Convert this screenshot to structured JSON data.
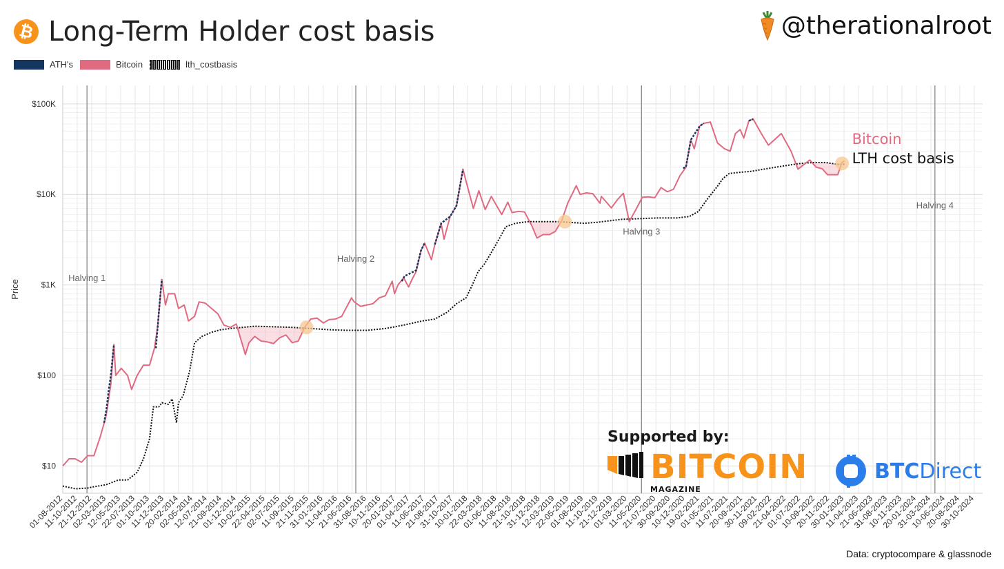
{
  "header": {
    "title": "Long-Term Holder cost basis",
    "logo_symbol": "₿",
    "handle": "@therationalroot",
    "handle_icon": "carrot-icon"
  },
  "legend": [
    {
      "label": "ATH's",
      "color": "#14365f"
    },
    {
      "label": "Bitcoin",
      "color": "#e06a80"
    },
    {
      "label": "lth_costbasis",
      "color": "#111111"
    }
  ],
  "sponsors": {
    "supported_label": "Supported by:",
    "bitcoin_magazine_word": "BITCOIN",
    "bitcoin_magazine_sub": "MAGAZINE",
    "btcdirect_bold": "BTC",
    "btcdirect_light": "Direct"
  },
  "source": "Data: cryptocompare & glassnode",
  "chart_data": {
    "type": "line",
    "scale": "log",
    "ylabel": "Price",
    "yticks": [
      {
        "value": 10,
        "label": "$10"
      },
      {
        "value": 100,
        "label": "$100"
      },
      {
        "value": 1000,
        "label": "$1K"
      },
      {
        "value": 10000,
        "label": "$10K"
      },
      {
        "value": 100000,
        "label": "$100K"
      }
    ],
    "ylim": [
      5,
      160000
    ],
    "xlim": [
      "2012-08-01",
      "2024-12-10"
    ],
    "xticks": [
      "01-08-2012",
      "11-10-2012",
      "21-12-2012",
      "02-03-2013",
      "12-05-2013",
      "22-07-2013",
      "01-10-2013",
      "11-12-2013",
      "20-02-2014",
      "02-05-2014",
      "12-07-2014",
      "21-09-2014",
      "01-12-2014",
      "10-02-2015",
      "22-04-2015",
      "02-07-2015",
      "11-09-2015",
      "21-11-2015",
      "31-01-2016",
      "11-04-2016",
      "21-06-2016",
      "31-08-2016",
      "10-11-2016",
      "20-01-2017",
      "01-04-2017",
      "11-06-2017",
      "21-08-2017",
      "31-10-2017",
      "10-01-2018",
      "22-03-2018",
      "01-06-2018",
      "11-08-2018",
      "21-10-2018",
      "31-12-2018",
      "12-03-2019",
      "22-05-2019",
      "01-08-2019",
      "11-10-2019",
      "21-12-2019",
      "01-03-2020",
      "11-05-2020",
      "21-07-2020",
      "30-09-2020",
      "10-12-2020",
      "19-02-2021",
      "01-05-2021",
      "11-07-2021",
      "20-09-2021",
      "30-11-2021",
      "09-02-2022",
      "21-04-2022",
      "01-07-2022",
      "10-09-2022",
      "20-11-2022",
      "30-01-2023",
      "11-04-2023",
      "21-06-2023",
      "31-08-2023",
      "10-11-2023",
      "20-01-2024",
      "31-03-2024",
      "10-06-2024",
      "20-08-2024",
      "30-10-2024"
    ],
    "halvings": [
      {
        "label": "Halving 1",
        "date": "2012-11-28",
        "label_value": 1100
      },
      {
        "label": "Halving 2",
        "date": "2016-07-09",
        "label_value": 1800
      },
      {
        "label": "Halving 3",
        "date": "2020-05-11",
        "label_value": 3600
      },
      {
        "label": "Halving 4",
        "date": "2024-04-20",
        "label_value": 7000
      }
    ],
    "series": [
      {
        "name": "Bitcoin",
        "color": "#e06a80",
        "points": [
          [
            "2012-08-01",
            10
          ],
          [
            "2012-09-01",
            12
          ],
          [
            "2012-10-01",
            12
          ],
          [
            "2012-11-01",
            11
          ],
          [
            "2012-12-01",
            13
          ],
          [
            "2013-01-01",
            13
          ],
          [
            "2013-02-01",
            21
          ],
          [
            "2013-03-01",
            35
          ],
          [
            "2013-03-25",
            80
          ],
          [
            "2013-04-09",
            220
          ],
          [
            "2013-04-18",
            100
          ],
          [
            "2013-05-15",
            120
          ],
          [
            "2013-06-15",
            100
          ],
          [
            "2013-07-05",
            70
          ],
          [
            "2013-08-01",
            100
          ],
          [
            "2013-09-01",
            130
          ],
          [
            "2013-10-01",
            130
          ],
          [
            "2013-10-25",
            200
          ],
          [
            "2013-11-10",
            350
          ],
          [
            "2013-11-30",
            1150
          ],
          [
            "2013-12-18",
            600
          ],
          [
            "2014-01-01",
            800
          ],
          [
            "2014-02-01",
            800
          ],
          [
            "2014-02-20",
            550
          ],
          [
            "2014-03-20",
            600
          ],
          [
            "2014-04-10",
            400
          ],
          [
            "2014-05-10",
            450
          ],
          [
            "2014-06-01",
            650
          ],
          [
            "2014-07-01",
            630
          ],
          [
            "2014-08-01",
            550
          ],
          [
            "2014-09-01",
            480
          ],
          [
            "2014-10-01",
            360
          ],
          [
            "2014-11-01",
            340
          ],
          [
            "2014-12-01",
            370
          ],
          [
            "2015-01-14",
            170
          ],
          [
            "2015-02-01",
            230
          ],
          [
            "2015-03-01",
            270
          ],
          [
            "2015-04-01",
            240
          ],
          [
            "2015-05-01",
            235
          ],
          [
            "2015-06-01",
            225
          ],
          [
            "2015-07-01",
            260
          ],
          [
            "2015-08-01",
            280
          ],
          [
            "2015-09-01",
            230
          ],
          [
            "2015-10-01",
            240
          ],
          [
            "2015-11-01",
            340
          ],
          [
            "2015-12-01",
            420
          ],
          [
            "2016-01-01",
            430
          ],
          [
            "2016-02-01",
            380
          ],
          [
            "2016-03-01",
            415
          ],
          [
            "2016-04-01",
            420
          ],
          [
            "2016-05-01",
            450
          ],
          [
            "2016-06-18",
            720
          ],
          [
            "2016-07-01",
            650
          ],
          [
            "2016-08-01",
            580
          ],
          [
            "2016-09-01",
            600
          ],
          [
            "2016-10-01",
            620
          ],
          [
            "2016-11-01",
            720
          ],
          [
            "2016-12-01",
            760
          ],
          [
            "2017-01-04",
            1100
          ],
          [
            "2017-01-15",
            800
          ],
          [
            "2017-02-01",
            1000
          ],
          [
            "2017-03-01",
            1200
          ],
          [
            "2017-03-25",
            950
          ],
          [
            "2017-04-15",
            1200
          ],
          [
            "2017-05-01",
            1400
          ],
          [
            "2017-05-25",
            2400
          ],
          [
            "2017-06-12",
            2900
          ],
          [
            "2017-07-15",
            1900
          ],
          [
            "2017-08-01",
            2800
          ],
          [
            "2017-09-01",
            4800
          ],
          [
            "2017-09-15",
            3200
          ],
          [
            "2017-10-15",
            5700
          ],
          [
            "2017-11-15",
            7500
          ],
          [
            "2017-12-17",
            19000
          ],
          [
            "2018-01-01",
            14000
          ],
          [
            "2018-02-06",
            7000
          ],
          [
            "2018-03-05",
            11000
          ],
          [
            "2018-04-05",
            6800
          ],
          [
            "2018-05-05",
            9500
          ],
          [
            "2018-06-25",
            6000
          ],
          [
            "2018-07-25",
            8200
          ],
          [
            "2018-08-15",
            6300
          ],
          [
            "2018-09-15",
            6500
          ],
          [
            "2018-10-15",
            6400
          ],
          [
            "2018-11-20",
            4500
          ],
          [
            "2018-12-15",
            3300
          ],
          [
            "2019-01-15",
            3600
          ],
          [
            "2019-02-15",
            3600
          ],
          [
            "2019-03-15",
            3900
          ],
          [
            "2019-04-15",
            5100
          ],
          [
            "2019-05-15",
            8000
          ],
          [
            "2019-06-26",
            12500
          ],
          [
            "2019-07-15",
            10000
          ],
          [
            "2019-08-15",
            10400
          ],
          [
            "2019-09-15",
            10200
          ],
          [
            "2019-10-20",
            8000
          ],
          [
            "2019-10-27",
            9500
          ],
          [
            "2019-12-15",
            7100
          ],
          [
            "2020-01-15",
            8800
          ],
          [
            "2020-02-12",
            10300
          ],
          [
            "2020-03-12",
            5000
          ],
          [
            "2020-04-15",
            6900
          ],
          [
            "2020-05-15",
            9300
          ],
          [
            "2020-06-15",
            9400
          ],
          [
            "2020-07-15",
            9200
          ],
          [
            "2020-08-15",
            11900
          ],
          [
            "2020-09-15",
            10700
          ],
          [
            "2020-10-15",
            11400
          ],
          [
            "2020-11-15",
            16000
          ],
          [
            "2020-12-15",
            20000
          ],
          [
            "2021-01-08",
            40000
          ],
          [
            "2021-01-25",
            32000
          ],
          [
            "2021-02-21",
            57000
          ],
          [
            "2021-03-13",
            61000
          ],
          [
            "2021-04-14",
            63000
          ],
          [
            "2021-05-19",
            37000
          ],
          [
            "2021-06-22",
            32000
          ],
          [
            "2021-07-20",
            30000
          ],
          [
            "2021-08-15",
            47000
          ],
          [
            "2021-09-07",
            52000
          ],
          [
            "2021-09-25",
            42000
          ],
          [
            "2021-10-20",
            65000
          ],
          [
            "2021-11-10",
            68000
          ],
          [
            "2021-12-20",
            47000
          ],
          [
            "2022-01-24",
            35000
          ],
          [
            "2022-03-28",
            47000
          ],
          [
            "2022-05-15",
            30000
          ],
          [
            "2022-06-18",
            19000
          ],
          [
            "2022-08-15",
            24000
          ],
          [
            "2022-09-15",
            20000
          ],
          [
            "2022-10-15",
            19200
          ],
          [
            "2022-11-10",
            16500
          ],
          [
            "2022-12-30",
            16500
          ],
          [
            "2023-01-20",
            22500
          ],
          [
            "2023-02-01",
            23500
          ]
        ]
      },
      {
        "name": "lth_costbasis",
        "color": "#111111",
        "points": [
          [
            "2012-08-01",
            6
          ],
          [
            "2012-10-01",
            5.6
          ],
          [
            "2012-12-01",
            5.7
          ],
          [
            "2013-01-01",
            5.9
          ],
          [
            "2013-03-01",
            6.2
          ],
          [
            "2013-05-01",
            7
          ],
          [
            "2013-06-15",
            7
          ],
          [
            "2013-08-01",
            8.5
          ],
          [
            "2013-09-01",
            12
          ],
          [
            "2013-10-01",
            20
          ],
          [
            "2013-10-20",
            45
          ],
          [
            "2013-11-15",
            45
          ],
          [
            "2013-12-01",
            50
          ],
          [
            "2014-01-01",
            48
          ],
          [
            "2014-01-20",
            55
          ],
          [
            "2014-02-10",
            30
          ],
          [
            "2014-02-20",
            50
          ],
          [
            "2014-03-15",
            60
          ],
          [
            "2014-04-15",
            110
          ],
          [
            "2014-05-10",
            230
          ],
          [
            "2014-06-15",
            270
          ],
          [
            "2014-08-01",
            300
          ],
          [
            "2014-09-15",
            320
          ],
          [
            "2014-11-01",
            330
          ],
          [
            "2015-01-01",
            340
          ],
          [
            "2015-03-01",
            350
          ],
          [
            "2015-06-01",
            345
          ],
          [
            "2015-09-01",
            340
          ],
          [
            "2015-12-01",
            330
          ],
          [
            "2016-03-01",
            320
          ],
          [
            "2016-06-01",
            315
          ],
          [
            "2016-09-01",
            315
          ],
          [
            "2016-12-01",
            330
          ],
          [
            "2017-03-01",
            360
          ],
          [
            "2017-06-01",
            400
          ],
          [
            "2017-08-01",
            420
          ],
          [
            "2017-10-01",
            500
          ],
          [
            "2017-11-15",
            620
          ],
          [
            "2018-01-01",
            720
          ],
          [
            "2018-02-01",
            1000
          ],
          [
            "2018-03-01",
            1400
          ],
          [
            "2018-04-01",
            1700
          ],
          [
            "2018-05-01",
            2200
          ],
          [
            "2018-06-15",
            3300
          ],
          [
            "2018-07-15",
            4400
          ],
          [
            "2018-09-01",
            4800
          ],
          [
            "2018-11-01",
            5000
          ],
          [
            "2019-01-01",
            5000
          ],
          [
            "2019-04-01",
            5000
          ],
          [
            "2019-06-01",
            4900
          ],
          [
            "2019-08-01",
            4800
          ],
          [
            "2019-10-01",
            4900
          ],
          [
            "2019-12-01",
            5100
          ],
          [
            "2020-02-01",
            5300
          ],
          [
            "2020-05-01",
            5400
          ],
          [
            "2020-08-01",
            5500
          ],
          [
            "2020-11-01",
            5500
          ],
          [
            "2021-01-01",
            5700
          ],
          [
            "2021-02-15",
            6500
          ],
          [
            "2021-04-01",
            9000
          ],
          [
            "2021-05-15",
            12000
          ],
          [
            "2021-06-15",
            15000
          ],
          [
            "2021-07-15",
            17000
          ],
          [
            "2021-09-01",
            17500
          ],
          [
            "2021-11-01",
            18000
          ],
          [
            "2022-01-01",
            19000
          ],
          [
            "2022-03-01",
            20000
          ],
          [
            "2022-05-01",
            21000
          ],
          [
            "2022-07-01",
            22000
          ],
          [
            "2022-09-01",
            22500
          ],
          [
            "2022-11-01",
            22500
          ],
          [
            "2023-01-01",
            21500
          ],
          [
            "2023-02-01",
            21500
          ]
        ]
      },
      {
        "name": "ATH's",
        "color": "#14365f",
        "segments": [
          [
            [
              "2013-02-20",
              30
            ],
            [
              "2013-03-05",
              45
            ],
            [
              "2013-03-15",
              70
            ],
            [
              "2013-03-25",
              100
            ],
            [
              "2013-04-09",
              220
            ]
          ],
          [
            [
              "2013-11-01",
              200
            ],
            [
              "2013-11-10",
              350
            ],
            [
              "2013-11-20",
              650
            ],
            [
              "2013-11-30",
              1150
            ]
          ],
          [
            [
              "2017-02-20",
              1100
            ],
            [
              "2017-03-05",
              1250
            ],
            [
              "2017-05-01",
              1450
            ],
            [
              "2017-05-25",
              2400
            ],
            [
              "2017-06-12",
              2900
            ]
          ],
          [
            [
              "2017-08-01",
              2800
            ],
            [
              "2017-09-01",
              4800
            ],
            [
              "2017-10-15",
              5700
            ],
            [
              "2017-11-15",
              7500
            ],
            [
              "2017-12-17",
              19000
            ]
          ],
          [
            [
              "2020-12-01",
              19500
            ],
            [
              "2020-12-15",
              20000
            ],
            [
              "2021-01-08",
              40000
            ],
            [
              "2021-02-21",
              57000
            ],
            [
              "2021-03-13",
              61000
            ]
          ],
          [
            [
              "2021-10-20",
              65000
            ],
            [
              "2021-11-10",
              68000
            ]
          ]
        ]
      }
    ],
    "annotations": [
      {
        "text": "Bitcoin",
        "color": "#e06a80",
        "date": "2023-03-10",
        "value": 36000
      },
      {
        "text": "LTH cost basis",
        "color": "#111111",
        "date": "2023-03-10",
        "value": 22000
      }
    ],
    "crossings": [
      {
        "date": "2015-11-10",
        "value": 340
      },
      {
        "date": "2019-05-01",
        "value": 5000
      },
      {
        "date": "2023-01-20",
        "value": 22000
      }
    ]
  }
}
